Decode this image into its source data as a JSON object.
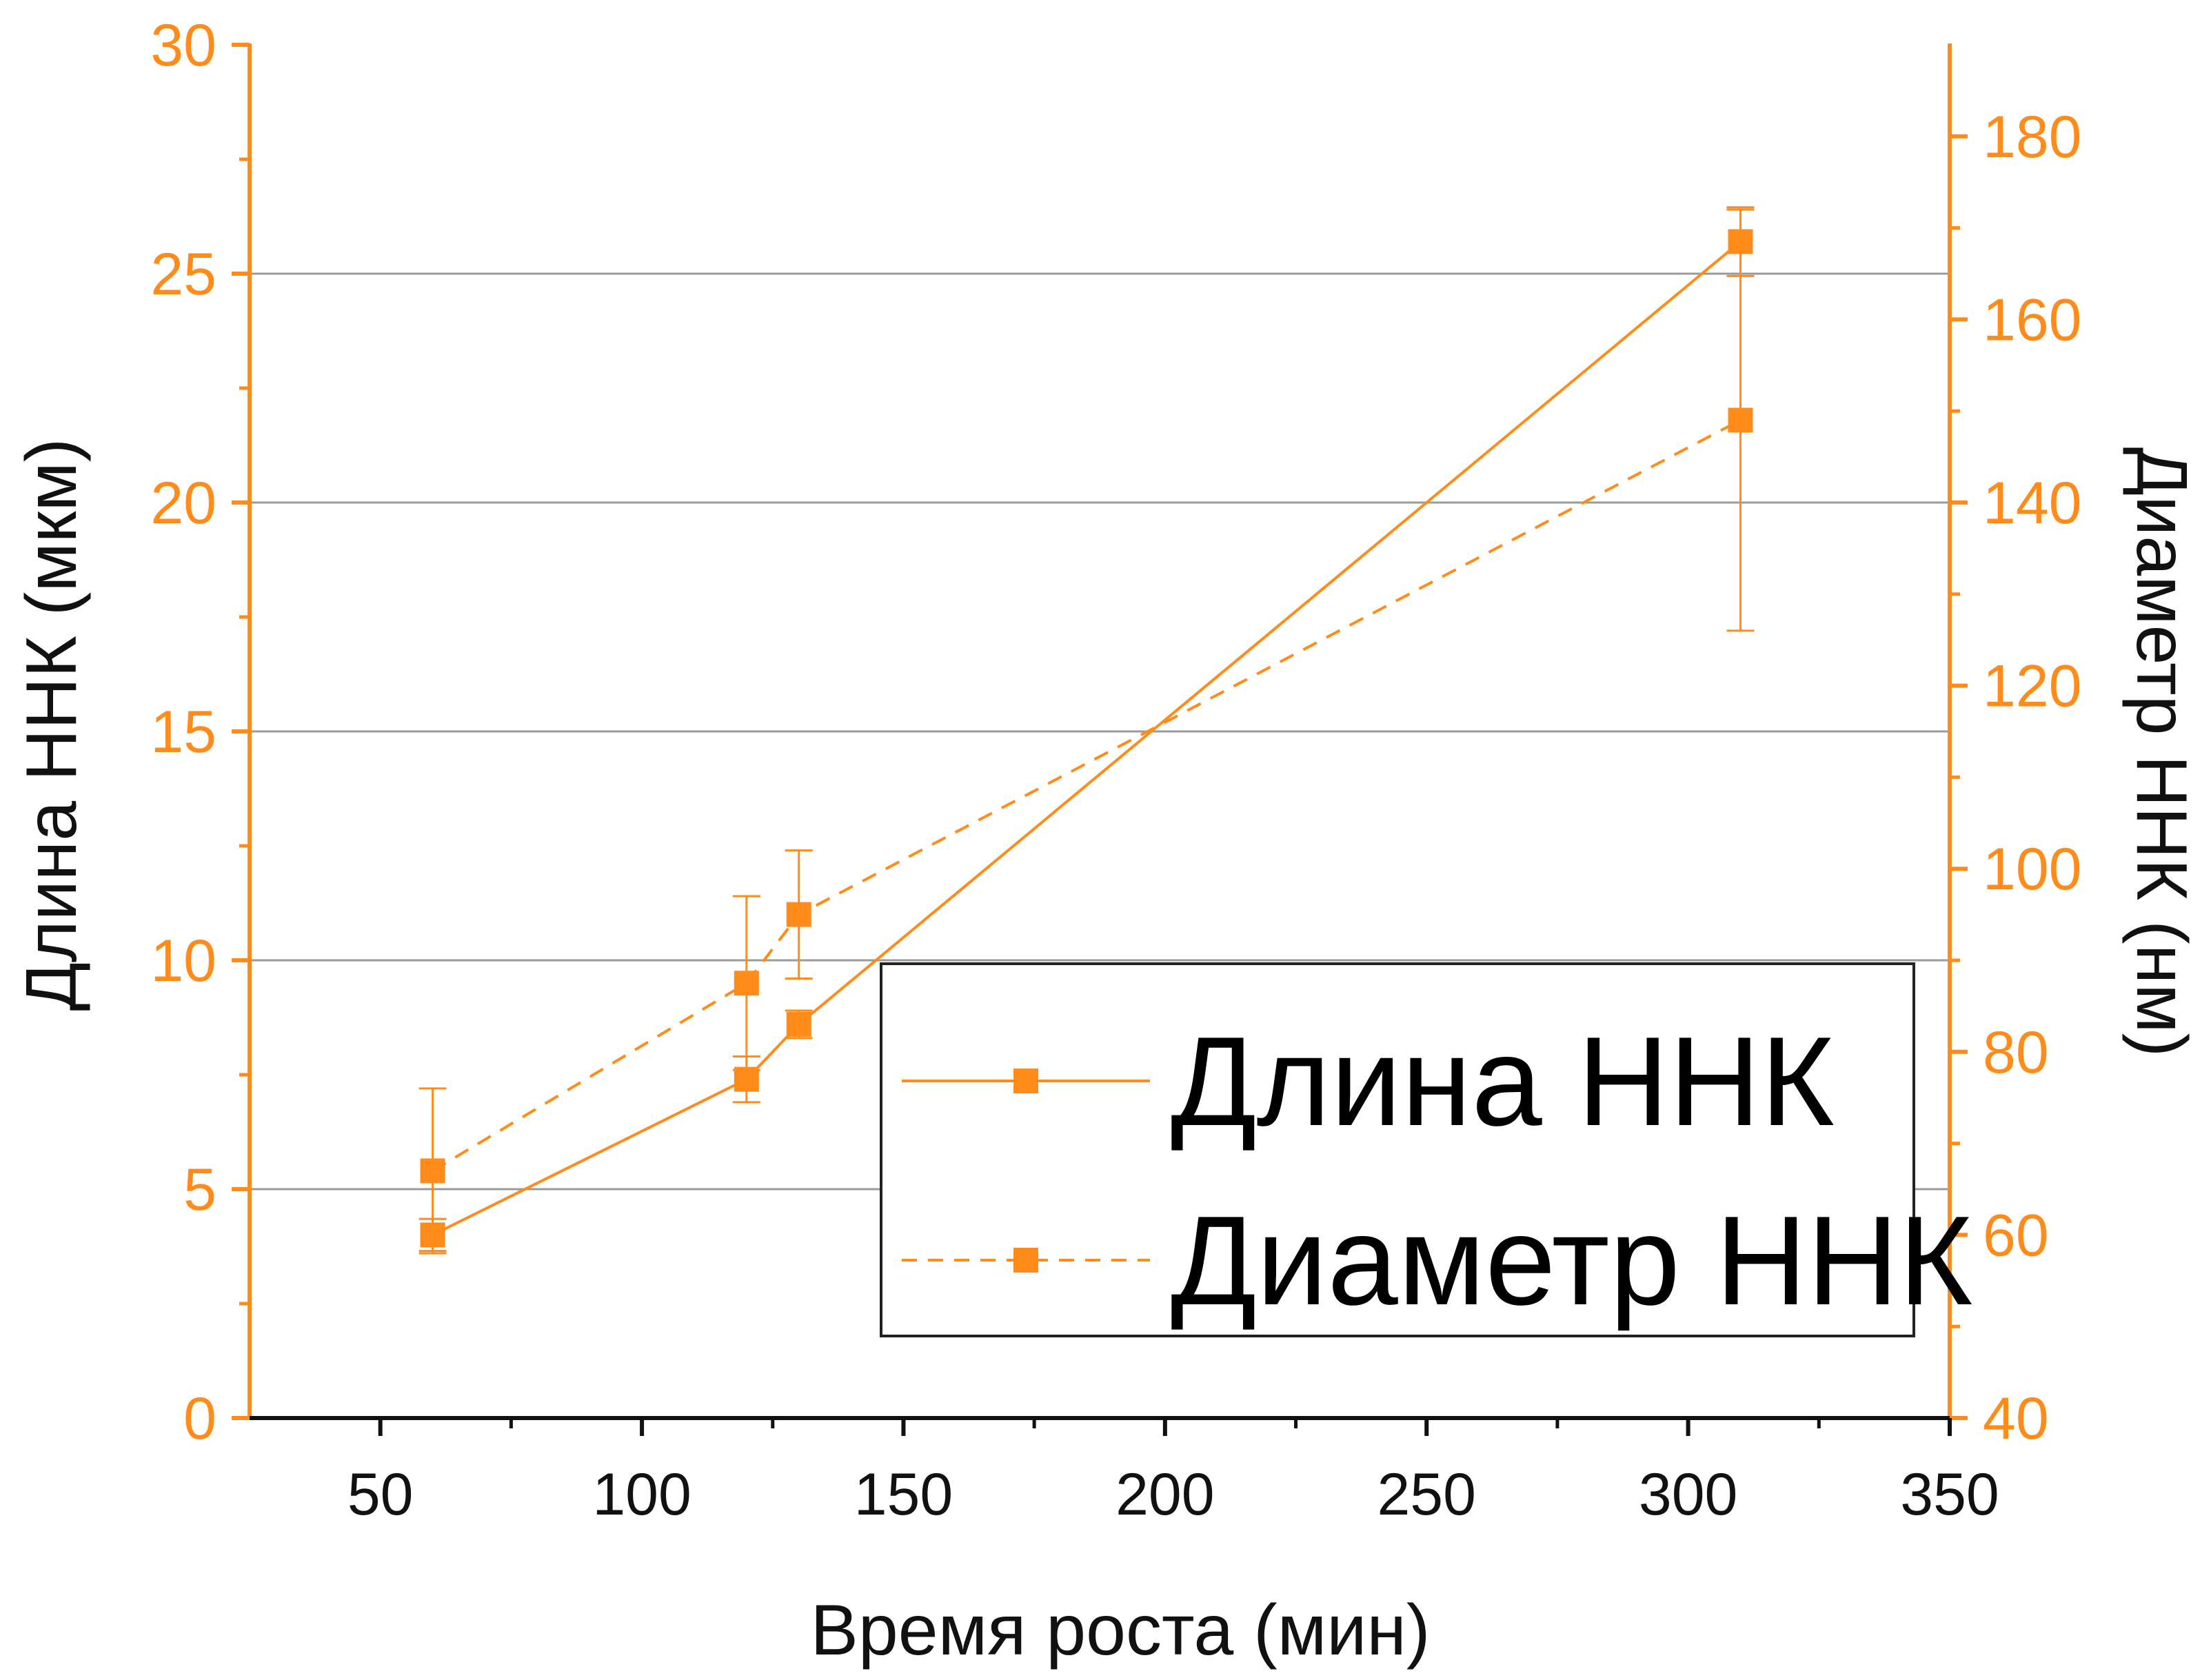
{
  "chart_data": {
    "type": "line",
    "x": [
      60,
      120,
      130,
      310
    ],
    "xlabel": "Время роста (мин)",
    "xlim": [
      25,
      350
    ],
    "xticks": [
      50,
      100,
      150,
      200,
      250,
      300,
      350
    ],
    "xtick_labels": [
      "50",
      "100",
      "150",
      "200",
      "250",
      "300",
      "350"
    ],
    "ylabel": "Длина ННК (мкм)",
    "ylim": [
      0,
      30
    ],
    "yticks": [
      0,
      5,
      10,
      15,
      20,
      25,
      30
    ],
    "ytick_labels": [
      "0",
      "5",
      "10",
      "15",
      "20",
      "25",
      "30"
    ],
    "y2label": "Диаметр ННК (нм)",
    "y2lim": [
      40,
      190
    ],
    "y2ticks": [
      40,
      60,
      80,
      100,
      120,
      140,
      160,
      180
    ],
    "y2tick_labels": [
      "40",
      "60",
      "80",
      "100",
      "120",
      "140",
      "160",
      "180"
    ],
    "grid": "horizontal",
    "legend_position": "bottom-right",
    "series": [
      {
        "name": "Длина ННК",
        "axis": "left",
        "line_style": "solid",
        "marker": "square",
        "values": [
          4.0,
          7.4,
          8.6,
          25.7
        ],
        "error": [
          0.35,
          0.5,
          0.3,
          0.75
        ]
      },
      {
        "name": "Диаметр ННК",
        "axis": "right",
        "line_style": "dashed",
        "marker": "square",
        "values": [
          67,
          87.5,
          95,
          149
        ],
        "error": [
          9,
          9.5,
          7,
          23
        ]
      }
    ],
    "colors": {
      "series": "#ff8c1a",
      "axis": "#ff8c1a",
      "grid": "#9a9a9a",
      "text": "#111111",
      "legend_border": "#222222"
    }
  }
}
